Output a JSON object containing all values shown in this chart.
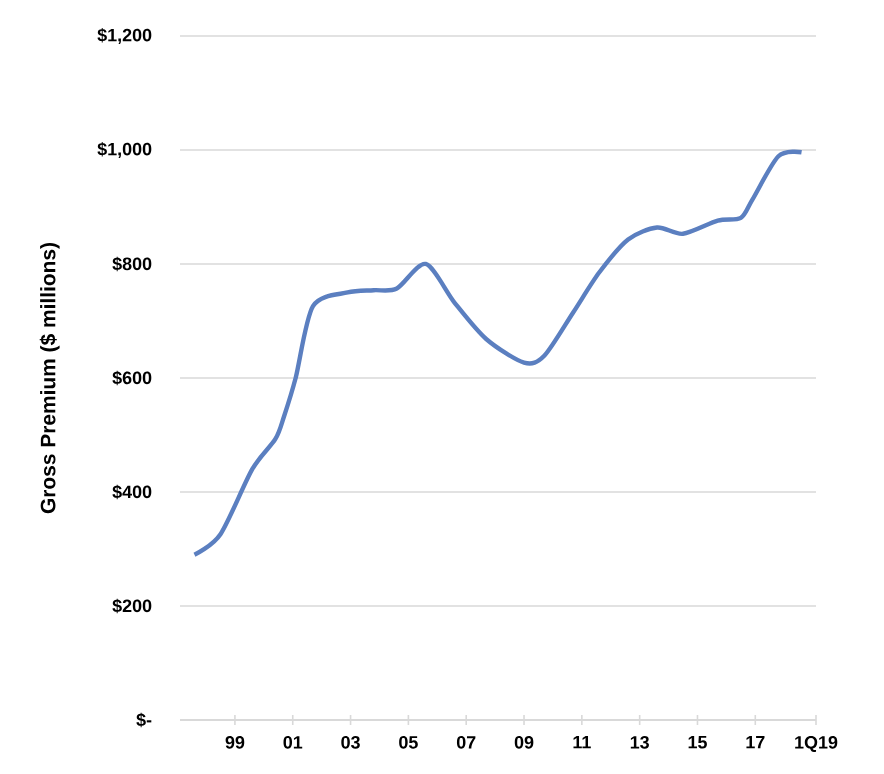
{
  "chart_data": {
    "type": "line",
    "ylabel": "Gross Premium ($ millions)",
    "x": [
      1997.6,
      1998.5,
      1999.6,
      2000.4,
      2000.7,
      2001.1,
      2001.7,
      2002.9,
      2003.8,
      2004.6,
      2005.6,
      2006.6,
      2007.7,
      2009.0,
      2009.7,
      2010.7,
      2011.6,
      2012.6,
      2013.6,
      2014.5,
      2015.7,
      2016.5,
      2016.9,
      2017.8,
      2018.6
    ],
    "series": [
      {
        "color": "#5b7fc0",
        "values": [
          290,
          326,
          440,
          493,
          533,
          600,
          726,
          750,
          754,
          757,
          800,
          732,
          668,
          627,
          639,
          715,
          785,
          843,
          864,
          853,
          876,
          881,
          913,
          989,
          996
        ]
      }
    ],
    "xlim": [
      1997.1,
      2019.1
    ],
    "xticks": [
      {
        "value": 1999,
        "label": "99"
      },
      {
        "value": 2001,
        "label": "01"
      },
      {
        "value": 2003,
        "label": "03"
      },
      {
        "value": 2005,
        "label": "05"
      },
      {
        "value": 2007,
        "label": "07"
      },
      {
        "value": 2009,
        "label": "09"
      },
      {
        "value": 2011,
        "label": "11"
      },
      {
        "value": 2013,
        "label": "13"
      },
      {
        "value": 2015,
        "label": "15"
      },
      {
        "value": 2017,
        "label": "17"
      },
      {
        "value": 2019.1,
        "label": "1Q19"
      }
    ],
    "ylim": [
      0,
      1200
    ],
    "yticks": [
      {
        "value": 0,
        "label": "$-"
      },
      {
        "value": 200,
        "label": "$200"
      },
      {
        "value": 400,
        "label": "$400"
      },
      {
        "value": 600,
        "label": "$600"
      },
      {
        "value": 800,
        "label": "$800"
      },
      {
        "value": 1000,
        "label": "$1,000"
      },
      {
        "value": 1200,
        "label": "$1,200"
      }
    ],
    "grid": "y",
    "legend": false,
    "marker": "none",
    "line_style": "solid"
  }
}
